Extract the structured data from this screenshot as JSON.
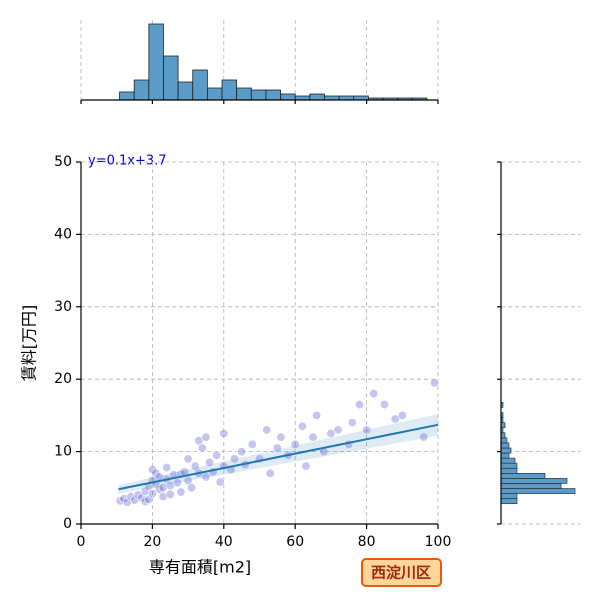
{
  "chart_data": [
    {
      "type": "scatter",
      "x_label": "専有面積[m2]",
      "y_label": "賃料[万円]",
      "annotation": "y=0.1x+3.7",
      "badge": "西淀川区",
      "color": "#5a5ad2",
      "grid": true,
      "xlim": [
        0,
        100
      ],
      "xticks": [
        0,
        20,
        40,
        60,
        80,
        100
      ],
      "ylim": [
        0,
        50
      ],
      "yticks": [
        0,
        10,
        20,
        30,
        40,
        50
      ],
      "x": [
        11,
        12,
        13,
        14,
        15,
        16,
        17,
        18,
        18,
        19,
        19,
        20,
        20,
        20,
        21,
        21,
        22,
        22,
        23,
        23,
        24,
        24,
        25,
        25,
        26,
        27,
        28,
        28,
        29,
        30,
        30,
        31,
        32,
        33,
        33,
        34,
        35,
        35,
        36,
        37,
        38,
        39,
        40,
        40,
        42,
        43,
        45,
        46,
        48,
        50,
        52,
        53,
        55,
        56,
        58,
        60,
        62,
        63,
        65,
        66,
        68,
        70,
        72,
        75,
        76,
        78,
        80,
        82,
        85,
        88,
        90,
        96,
        99
      ],
      "values": [
        3.2,
        3.5,
        3.0,
        3.8,
        3.3,
        4.0,
        3.6,
        3.1,
        4.5,
        5.2,
        3.4,
        6.0,
        7.5,
        4.2,
        5.5,
        7.0,
        6.5,
        4.8,
        5.0,
        3.8,
        6.2,
        7.8,
        5.3,
        4.1,
        6.8,
        5.7,
        6.9,
        4.4,
        7.2,
        6.0,
        9.0,
        5.0,
        8.0,
        11.5,
        7.0,
        10.5,
        12.0,
        6.5,
        8.5,
        7.2,
        9.5,
        5.8,
        12.5,
        8.0,
        7.5,
        9.0,
        10.0,
        8.2,
        11.0,
        9.0,
        13.0,
        7.0,
        10.5,
        12.0,
        9.5,
        11.0,
        13.5,
        8.0,
        12.0,
        15.0,
        10.0,
        12.5,
        13.0,
        11.0,
        14.0,
        16.5,
        13.0,
        18.0,
        16.5,
        14.5,
        15.0,
        12.0,
        19.5
      ],
      "trend": {
        "color": "#1f77b4",
        "x": [
          10.5,
          100
        ],
        "values": [
          4.8,
          13.7
        ],
        "band_lower": [
          4.2,
          12.2
        ],
        "band_upper": [
          5.4,
          15.2
        ]
      }
    },
    {
      "type": "histogram",
      "orientation": "vertical",
      "color": "#5b9bc8",
      "grid": true,
      "xlim": [
        0,
        100
      ],
      "xticks": [
        0,
        20,
        40,
        60,
        80,
        100
      ],
      "ylim": [
        0,
        40
      ],
      "bins": [
        10.8,
        14.9,
        19.0,
        23.1,
        27.2,
        31.3,
        35.4,
        39.5,
        43.6,
        47.7,
        51.8,
        55.9,
        60.0,
        64.1,
        68.2,
        72.3,
        76.4,
        80.5,
        84.6,
        88.7,
        92.8,
        96.9
      ],
      "values": [
        4,
        10,
        38,
        22,
        9,
        15,
        6,
        10,
        6,
        5,
        5,
        3,
        2,
        3,
        2,
        2,
        2,
        1,
        1,
        1,
        1
      ]
    },
    {
      "type": "histogram",
      "orientation": "horizontal",
      "color": "#5b9bc8",
      "grid": true,
      "ylim": [
        0,
        50
      ],
      "yticks": [
        0,
        10,
        20,
        30,
        40,
        50
      ],
      "xlim": [
        0,
        40
      ],
      "bins": [
        2.8,
        3.5,
        4.2,
        4.9,
        5.6,
        6.3,
        7.0,
        7.7,
        8.4,
        9.1,
        9.8,
        10.5,
        11.2,
        11.9,
        12.6,
        13.3,
        14.0,
        14.7,
        15.4,
        16.1,
        16.8
      ],
      "values": [
        8,
        8,
        37,
        30,
        33,
        22,
        8,
        8,
        7,
        4,
        5,
        4,
        3,
        2,
        1,
        2,
        1,
        1,
        0,
        1
      ]
    }
  ]
}
